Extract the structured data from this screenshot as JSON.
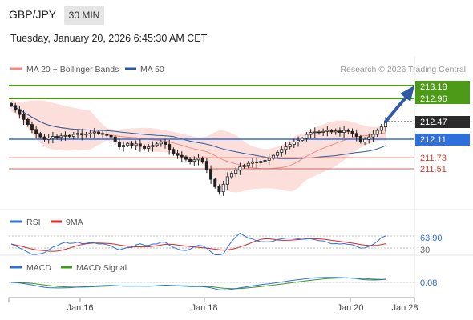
{
  "header": {
    "symbol": "GBP/JPY",
    "timeframe": "30 MIN",
    "datetime": "Tuesday, January 20, 2026 6:45:30 AM CET"
  },
  "chart_data": [
    {
      "type": "candlestick",
      "legend": [
        {
          "label": "MA 20 + Bollinger Bands",
          "color": "#f28b82"
        },
        {
          "label": "MA 50",
          "color": "#2d5aa0"
        }
      ],
      "attribution": "Research © 2026 Trading Central",
      "x_tick_labels": [
        "Jan 16",
        "Jan 18",
        "Jan 20",
        "Jan 28"
      ],
      "price_levels": [
        {
          "value": 213.18,
          "label": "213.18",
          "color": "#4c9a18",
          "style": "target"
        },
        {
          "value": 212.96,
          "label": "212.96",
          "color": "#4c9a18",
          "style": "target"
        },
        {
          "value": 212.47,
          "label": "212.47",
          "color": "#222222",
          "style": "last"
        },
        {
          "value": 212.11,
          "label": "212.11",
          "color": "#2f6fdc",
          "style": "pivot"
        },
        {
          "value": 211.73,
          "label": "211.73",
          "color": "#d93a2b",
          "style": "support"
        },
        {
          "value": 211.51,
          "label": "211.51",
          "color": "#d93a2b",
          "style": "support"
        }
      ],
      "closes": [
        212.78,
        212.7,
        212.6,
        212.5,
        212.4,
        212.3,
        212.22,
        212.15,
        212.1,
        212.13,
        212.16,
        212.14,
        212.17,
        212.18,
        212.16,
        212.2,
        212.22,
        212.19,
        212.21,
        212.23,
        212.25,
        212.22,
        212.2,
        212.18,
        212.15,
        212.05,
        211.95,
        211.98,
        212.02,
        211.98,
        212.01,
        211.96,
        211.92,
        211.95,
        211.98,
        212.01,
        212.04,
        212.0,
        211.9,
        211.82,
        211.78,
        211.75,
        211.7,
        211.66,
        211.69,
        211.72,
        211.66,
        211.5,
        211.3,
        211.15,
        211.05,
        211.2,
        211.35,
        211.42,
        211.48,
        211.55,
        211.58,
        211.62,
        211.65,
        211.63,
        211.66,
        211.68,
        211.72,
        211.78,
        211.84,
        211.9,
        211.95,
        212.0,
        212.05,
        212.08,
        212.12,
        212.2,
        212.24,
        212.25,
        212.24,
        212.26,
        212.28,
        212.25,
        212.27,
        212.24,
        212.28,
        212.26,
        212.22,
        212.16,
        212.05,
        212.1,
        212.15,
        212.2,
        212.28,
        212.35,
        212.47
      ],
      "rsi": {
        "series": [
          {
            "name": "RSI",
            "color": "#2f6fdc"
          },
          {
            "name": "9MA",
            "color": "#e02424"
          }
        ],
        "value_label": "63.90",
        "reference_label": "30"
      },
      "macd": {
        "series": [
          {
            "name": "MACD",
            "color": "#2f6fdc"
          },
          {
            "name": "MACD Signal",
            "color": "#3a9a18"
          }
        ],
        "value_label": "0.08"
      }
    }
  ]
}
